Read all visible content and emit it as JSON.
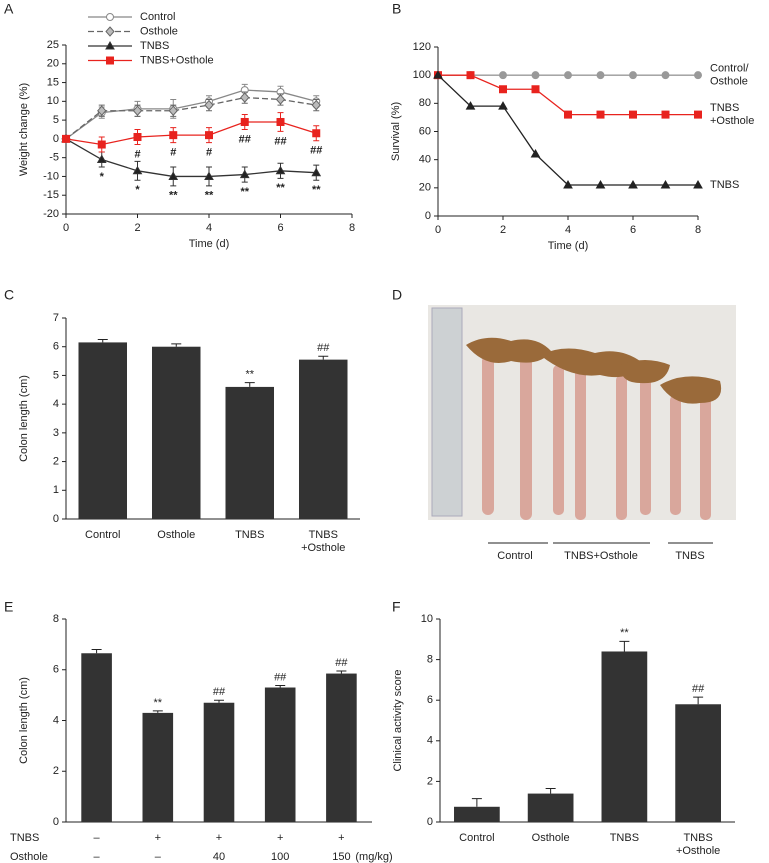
{
  "chart_data": [
    {
      "type": "line",
      "panel": "A",
      "xlabel": "Time (d)",
      "ylabel": "Weight change (%)",
      "x": [
        0,
        1,
        2,
        3,
        4,
        5,
        6,
        7
      ],
      "xlim": [
        0,
        8
      ],
      "xticks": [
        0,
        2,
        4,
        6,
        8
      ],
      "ylim": [
        -20,
        25
      ],
      "yticks": [
        -20,
        -15,
        -10,
        -5,
        0,
        5,
        10,
        15,
        20,
        25
      ],
      "legend": "upper left",
      "series": [
        {
          "name": "Control",
          "color": "#888888",
          "marker": "circle",
          "marker_fill": "#ffffff",
          "dash": false,
          "values": [
            0,
            7,
            8,
            8,
            10,
            13,
            12.5,
            10
          ],
          "errors": [
            0,
            1.5,
            2,
            2.5,
            1.5,
            1.5,
            1.5,
            1.5
          ],
          "annotations": [
            null,
            null,
            null,
            null,
            null,
            null,
            null,
            null
          ]
        },
        {
          "name": "Osthole",
          "color": "#666666",
          "marker": "diamond",
          "marker_fill": "#bbbbbb",
          "dash": true,
          "values": [
            0,
            7.5,
            7.5,
            7.5,
            9,
            11,
            10.5,
            9
          ],
          "errors": [
            0,
            1.5,
            1.5,
            1.5,
            1.5,
            1.5,
            1.5,
            1.5
          ],
          "annotations": [
            null,
            null,
            null,
            null,
            null,
            null,
            null,
            null
          ]
        },
        {
          "name": "TNBS",
          "color": "#333333",
          "marker": "triangle",
          "marker_fill": "#222222",
          "dash": false,
          "values": [
            0,
            -5.5,
            -8.5,
            -10,
            -10,
            -9.5,
            -8.5,
            -9
          ],
          "errors": [
            0,
            2,
            2.5,
            2.5,
            2.5,
            2,
            2,
            2
          ],
          "annotations": [
            null,
            "*",
            "*",
            "**",
            "**",
            "**",
            "**",
            "**"
          ]
        },
        {
          "name": "TNBS+Osthole",
          "color": "#e8231e",
          "marker": "square",
          "marker_fill": "#e8231e",
          "dash": false,
          "values": [
            0,
            -1.5,
            0.5,
            1,
            1,
            4.5,
            4.5,
            1.5
          ],
          "errors": [
            0,
            2,
            2,
            2,
            2,
            2,
            2.5,
            2
          ],
          "annotations": [
            null,
            null,
            "#",
            "#",
            "#",
            "##",
            "##",
            "##"
          ]
        }
      ]
    },
    {
      "type": "line",
      "panel": "B",
      "xlabel": "Time (d)",
      "ylabel": "Survival (%)",
      "x": [
        0,
        1,
        2,
        3,
        4,
        5,
        6,
        7,
        8
      ],
      "xlim": [
        0,
        8
      ],
      "xticks": [
        0,
        2,
        4,
        6,
        8
      ],
      "ylim": [
        0,
        120
      ],
      "yticks": [
        0,
        20,
        40,
        60,
        80,
        100,
        120
      ],
      "series": [
        {
          "label": [
            "Control/",
            "Osthole"
          ],
          "color": "#999999",
          "marker": "circle",
          "marker_fill": "#999999",
          "dash": false,
          "values": [
            100,
            100,
            100,
            100,
            100,
            100,
            100,
            100,
            100
          ]
        },
        {
          "label": [
            "TNBS",
            "+Osthole"
          ],
          "color": "#e8231e",
          "marker": "square",
          "marker_fill": "#e8231e",
          "dash": false,
          "values": [
            100,
            100,
            90,
            90,
            72,
            72,
            72,
            72,
            72
          ]
        },
        {
          "label": [
            "TNBS"
          ],
          "color": "#222222",
          "marker": "triangle",
          "marker_fill": "#222222",
          "dash": false,
          "values": [
            100,
            78,
            78,
            44,
            22,
            22,
            22,
            22,
            22
          ]
        }
      ]
    },
    {
      "type": "bar",
      "panel": "C",
      "ylabel": "Colon length (cm)",
      "color": "#333333",
      "categories": [
        "Control",
        "Osthole",
        "TNBS",
        [
          "TNBS",
          "+Osthole"
        ]
      ],
      "values": [
        6.15,
        6.0,
        4.6,
        5.55
      ],
      "errors": [
        0.1,
        0.1,
        0.15,
        0.12
      ],
      "annotations": [
        null,
        null,
        "**",
        "##"
      ],
      "ylim": [
        0,
        7
      ],
      "yticks": [
        0,
        1,
        2,
        3,
        4,
        5,
        6,
        7
      ]
    },
    {
      "type": "bar",
      "panel": "E",
      "ylabel": "Colon length (cm)",
      "color": "#333333",
      "values": [
        6.65,
        4.3,
        4.7,
        5.3,
        5.85
      ],
      "errors": [
        0.15,
        0.08,
        0.1,
        0.08,
        0.1
      ],
      "annotations": [
        null,
        "**",
        "##",
        "##",
        "##"
      ],
      "ylim": [
        0,
        8
      ],
      "yticks": [
        0,
        2,
        4,
        6,
        8
      ],
      "table": {
        "rows": [
          {
            "name": "TNBS",
            "cells": [
              "–",
              "+",
              "+",
              "+",
              "+"
            ]
          },
          {
            "name": "Osthole",
            "cells": [
              "–",
              "–",
              "40",
              "100",
              "150"
            ]
          }
        ],
        "unit": "(mg/kg)"
      }
    },
    {
      "type": "bar",
      "panel": "F",
      "ylabel": "Clinical activity score",
      "color": "#333333",
      "categories": [
        "Control",
        "Osthole",
        "TNBS",
        [
          "TNBS",
          "+Osthole"
        ]
      ],
      "values": [
        0.75,
        1.4,
        8.4,
        5.8
      ],
      "errors": [
        0.4,
        0.25,
        0.5,
        0.35
      ],
      "annotations": [
        null,
        null,
        "**",
        "##"
      ],
      "ylim": [
        0,
        10
      ],
      "yticks": [
        0,
        2,
        4,
        6,
        8,
        10
      ]
    }
  ],
  "photo": {
    "panel": "D",
    "labels": [
      "Control",
      "TNBS+Osthole",
      "TNBS"
    ]
  }
}
